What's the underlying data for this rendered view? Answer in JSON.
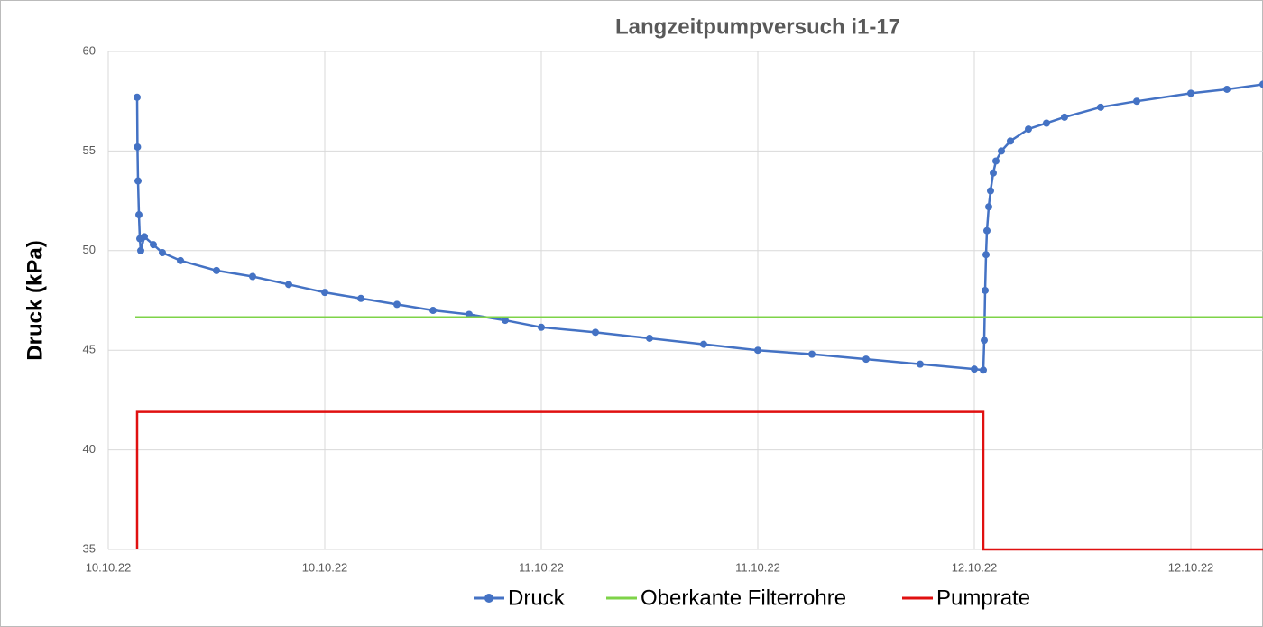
{
  "chart_data": {
    "type": "line",
    "title": "Langzeitpumpversuch i1-17",
    "y_label": "Druck (kPa)",
    "xlim": [
      0,
      64
    ],
    "xticks": [
      {
        "value": 0,
        "label": "10.10.22"
      },
      {
        "value": 12,
        "label": "10.10.22"
      },
      {
        "value": 24,
        "label": "11.10.22"
      },
      {
        "value": 36,
        "label": "11.10.22"
      },
      {
        "value": 48,
        "label": "12.10.22"
      },
      {
        "value": 60,
        "label": "12.10.22"
      }
    ],
    "ylim": [
      35,
      60
    ],
    "yticks": [
      35,
      40,
      45,
      50,
      55,
      60
    ],
    "grid": true,
    "legend": "bottom",
    "series": [
      {
        "name": "Druck",
        "color": "#4472c4",
        "markers": true,
        "x": [
          1.6,
          1.62,
          1.65,
          1.7,
          1.75,
          1.8,
          2,
          2.5,
          3,
          4,
          6,
          8,
          10,
          12,
          14,
          16,
          18,
          20,
          22,
          24,
          27,
          30,
          33,
          36,
          39,
          42,
          45,
          48,
          48.5,
          48.55,
          48.6,
          48.65,
          48.7,
          48.8,
          48.9,
          49.05,
          49.2,
          49.5,
          50,
          51,
          52,
          53,
          55,
          57,
          60,
          62,
          64
        ],
        "values": [
          57.7,
          55.2,
          53.5,
          51.8,
          50.6,
          50.0,
          50.7,
          50.3,
          49.9,
          49.5,
          49.0,
          48.7,
          48.3,
          47.9,
          47.6,
          47.3,
          47.0,
          46.8,
          46.5,
          46.15,
          45.9,
          45.6,
          45.3,
          45.0,
          44.8,
          44.55,
          44.3,
          44.05,
          44.0,
          45.5,
          48.0,
          49.8,
          51.0,
          52.2,
          53.0,
          53.9,
          54.5,
          55.0,
          55.5,
          56.1,
          56.4,
          56.7,
          57.2,
          57.5,
          57.9,
          58.1,
          58.35
        ]
      },
      {
        "name": "Oberkante Filterrohre",
        "color": "#7ed348",
        "markers": false,
        "x": [
          1.5,
          64
        ],
        "values": [
          46.65,
          46.65
        ]
      },
      {
        "name": "Pumprate",
        "color": "#e01010",
        "markers": false,
        "x": [
          1.6,
          1.6,
          48.5,
          48.5,
          64
        ],
        "values": [
          35,
          41.9,
          41.9,
          35,
          35
        ]
      }
    ]
  }
}
